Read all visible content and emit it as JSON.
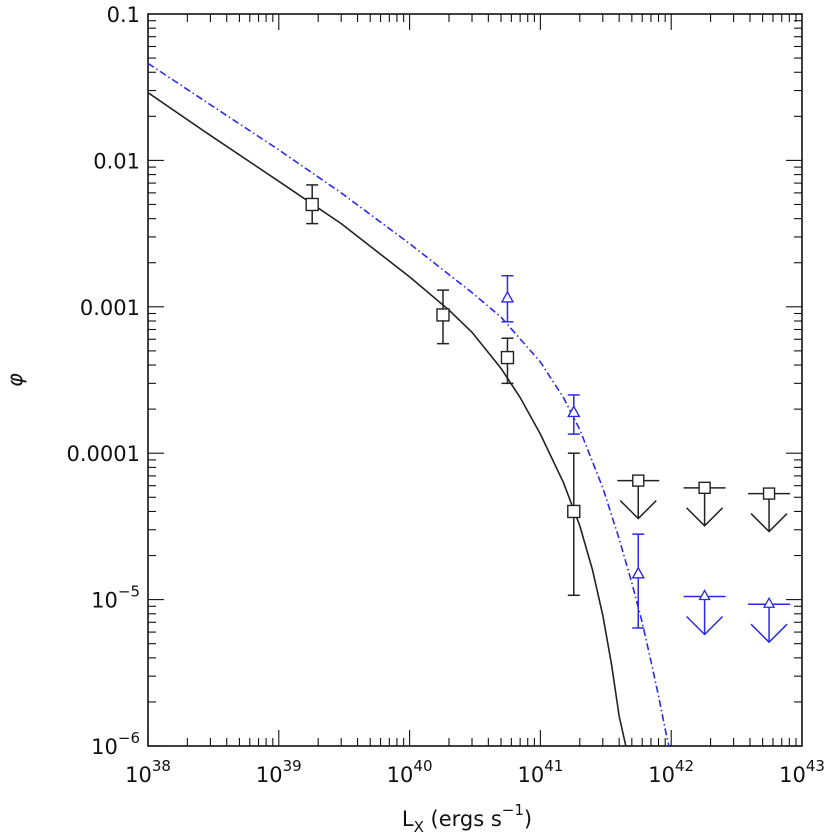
{
  "chart_data": {
    "type": "scatter",
    "title": "",
    "xlabel": "L_X (ergs s^-1)",
    "xlabel_main": "L",
    "xlabel_sub": "X",
    "xlabel_unit": "(ergs s",
    "xlabel_unit_exp": "−1",
    "xlabel_close": ")",
    "ylabel": "φ",
    "x_scale": "log",
    "y_scale": "log",
    "xlim": [
      1e+38,
      1e+43
    ],
    "ylim": [
      1e-06,
      0.1
    ],
    "grid": false,
    "legend": "none",
    "x_ticks": [
      {
        "value": 1e+38,
        "base": "10",
        "exp": "38"
      },
      {
        "value": 1e+39,
        "base": "10",
        "exp": "39"
      },
      {
        "value": 1e+40,
        "base": "10",
        "exp": "40"
      },
      {
        "value": 1e+41,
        "base": "10",
        "exp": "41"
      },
      {
        "value": 1e+42,
        "base": "10",
        "exp": "42"
      },
      {
        "value": 1e+43,
        "base": "10",
        "exp": "43"
      }
    ],
    "y_ticks": [
      {
        "value": 0.1,
        "base": "0.1",
        "exp": ""
      },
      {
        "value": 0.01,
        "base": "0.01",
        "exp": ""
      },
      {
        "value": 0.001,
        "base": "0.001",
        "exp": ""
      },
      {
        "value": 0.0001,
        "base": "0.0001",
        "exp": ""
      },
      {
        "value": 1e-05,
        "base": "10",
        "exp": "−5"
      },
      {
        "value": 1e-06,
        "base": "10",
        "exp": "−6"
      }
    ],
    "series": [
      {
        "color": "#222222",
        "marker": "square",
        "line_style": "solid",
        "points": [
          {
            "x": 1.8e+39,
            "y": 0.005,
            "ylo": 0.0037,
            "yhi": 0.0068
          },
          {
            "x": 1.8e+40,
            "y": 0.00088,
            "ylo": 0.00056,
            "yhi": 0.0013
          },
          {
            "x": 5.6e+40,
            "y": 0.00045,
            "ylo": 0.0003,
            "yhi": 0.00061
          },
          {
            "x": 1.8e+41,
            "y": 4e-05,
            "ylo": 1.07e-05,
            "yhi": 0.0001
          }
        ],
        "upper_limits": [
          {
            "x": 5.6e+41,
            "y": 6.5e-05
          },
          {
            "x": 1.8e+42,
            "y": 5.8e-05
          },
          {
            "x": 5.6e+42,
            "y": 5.3e-05
          }
        ],
        "model_curve": [
          {
            "x": 1e+38,
            "y": 0.029
          },
          {
            "x": 3e+38,
            "y": 0.0148
          },
          {
            "x": 1e+39,
            "y": 0.0072
          },
          {
            "x": 3e+39,
            "y": 0.0037
          },
          {
            "x": 1e+40,
            "y": 0.0016
          },
          {
            "x": 2e+40,
            "y": 0.00095
          },
          {
            "x": 3e+40,
            "y": 0.00067
          },
          {
            "x": 5e+40,
            "y": 0.00038
          },
          {
            "x": 7e+40,
            "y": 0.00024
          },
          {
            "x": 1e+41,
            "y": 0.000135
          },
          {
            "x": 1.5e+41,
            "y": 6.3e-05
          },
          {
            "x": 2e+41,
            "y": 3.2e-05
          },
          {
            "x": 2.5e+41,
            "y": 1.6e-05
          },
          {
            "x": 3e+41,
            "y": 7.8e-06
          },
          {
            "x": 3.5e+41,
            "y": 3.6e-06
          },
          {
            "x": 4e+41,
            "y": 1.6e-06
          },
          {
            "x": 4.5e+41,
            "y": 1e-06
          }
        ]
      },
      {
        "color": "#2a2ae6",
        "marker": "triangle",
        "line_style": "dash-dot",
        "points": [
          {
            "x": 5.6e+40,
            "y": 0.00115,
            "ylo": 0.00079,
            "yhi": 0.00163
          },
          {
            "x": 1.8e+41,
            "y": 0.00019,
            "ylo": 0.000135,
            "yhi": 0.00025
          },
          {
            "x": 5.6e+41,
            "y": 1.5e-05,
            "ylo": 6.4e-06,
            "yhi": 2.8e-05
          }
        ],
        "upper_limits": [
          {
            "x": 1.8e+42,
            "y": 1.05e-05
          },
          {
            "x": 5.6e+42,
            "y": 9.3e-06
          }
        ],
        "model_curve": [
          {
            "x": 1e+38,
            "y": 0.046
          },
          {
            "x": 3e+38,
            "y": 0.024
          },
          {
            "x": 1e+39,
            "y": 0.0118
          },
          {
            "x": 3e+39,
            "y": 0.006
          },
          {
            "x": 1e+40,
            "y": 0.0027
          },
          {
            "x": 3e+40,
            "y": 0.00125
          },
          {
            "x": 5e+40,
            "y": 0.00085
          },
          {
            "x": 1e+41,
            "y": 0.00042
          },
          {
            "x": 1.5e+41,
            "y": 0.00024
          },
          {
            "x": 2e+41,
            "y": 0.000145
          },
          {
            "x": 3e+41,
            "y": 5.8e-05
          },
          {
            "x": 4e+41,
            "y": 2.6e-05
          },
          {
            "x": 5e+41,
            "y": 1.3e-05
          },
          {
            "x": 6e+41,
            "y": 7e-06
          },
          {
            "x": 7e+41,
            "y": 3.8e-06
          },
          {
            "x": 8e+41,
            "y": 2.2e-06
          },
          {
            "x": 9e+41,
            "y": 1.3e-06
          },
          {
            "x": 9.6e+41,
            "y": 1e-06
          }
        ]
      }
    ]
  }
}
